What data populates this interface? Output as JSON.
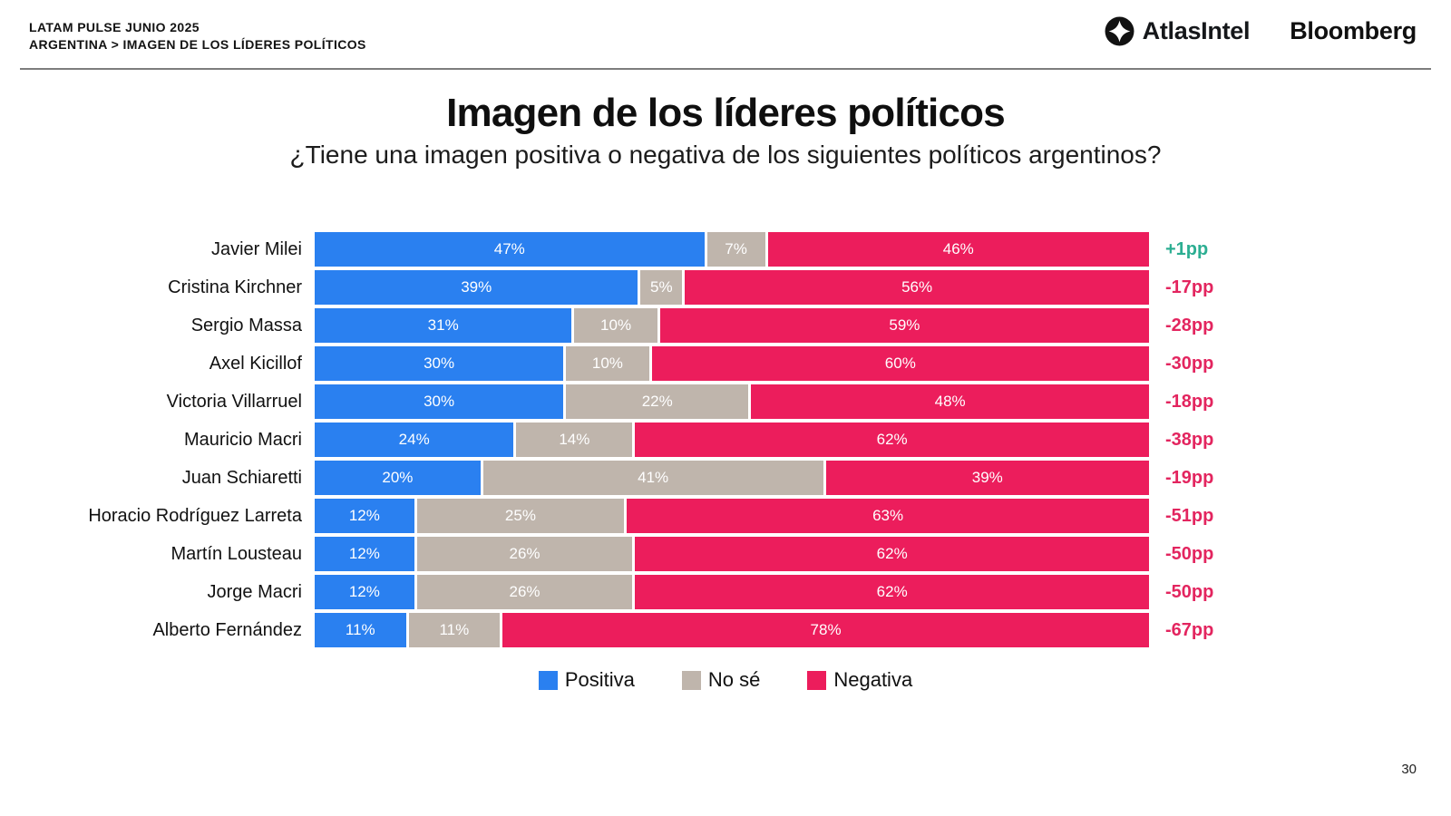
{
  "header": {
    "line1": "LATAM PULSE JUNIO 2025",
    "line2": "ARGENTINA > IMAGEN DE LOS LÍDERES POLÍTICOS",
    "logo_atlasintel": "AtlasIntel",
    "logo_bloomberg": "Bloomberg"
  },
  "title": "Imagen de los líderes políticos",
  "subtitle": "¿Tiene una imagen positiva o negativa de los siguientes políticos argentinos?",
  "page_number": "30",
  "colors": {
    "positive": "#2a80f0",
    "neutral": "#bfb5ac",
    "negative": "#ec1d5c",
    "delta_positive": "#2cae92",
    "delta_negative": "#e3255f"
  },
  "legend": [
    {
      "label": "Positiva",
      "color": "#2a80f0"
    },
    {
      "label": "No sé",
      "color": "#bfb5ac"
    },
    {
      "label": "Negativa",
      "color": "#ec1d5c"
    }
  ],
  "chart_data": {
    "type": "bar",
    "stacked": true,
    "orientation": "horizontal",
    "title": "Imagen de los líderes políticos",
    "xlim": [
      0,
      100
    ],
    "unit": "%",
    "categories": [
      "Javier Milei",
      "Cristina Kirchner",
      "Sergio Massa",
      "Axel Kicillof",
      "Victoria Villarruel",
      "Mauricio Macri",
      "Juan Schiaretti",
      "Horacio Rodríguez Larreta",
      "Martín Lousteau",
      "Jorge Macri",
      "Alberto Fernández"
    ],
    "series": [
      {
        "name": "Positiva",
        "values": [
          47,
          39,
          31,
          30,
          30,
          24,
          20,
          12,
          12,
          12,
          11
        ]
      },
      {
        "name": "No sé",
        "values": [
          7,
          5,
          10,
          10,
          22,
          14,
          41,
          25,
          26,
          26,
          11
        ]
      },
      {
        "name": "Negativa",
        "values": [
          46,
          56,
          59,
          60,
          48,
          62,
          39,
          63,
          62,
          62,
          78
        ]
      }
    ],
    "deltas": [
      "+1pp",
      "-17pp",
      "-28pp",
      "-30pp",
      "-18pp",
      "-38pp",
      "-19pp",
      "-51pp",
      "-50pp",
      "-50pp",
      "-67pp"
    ],
    "legend_position": "bottom",
    "grid": false
  }
}
